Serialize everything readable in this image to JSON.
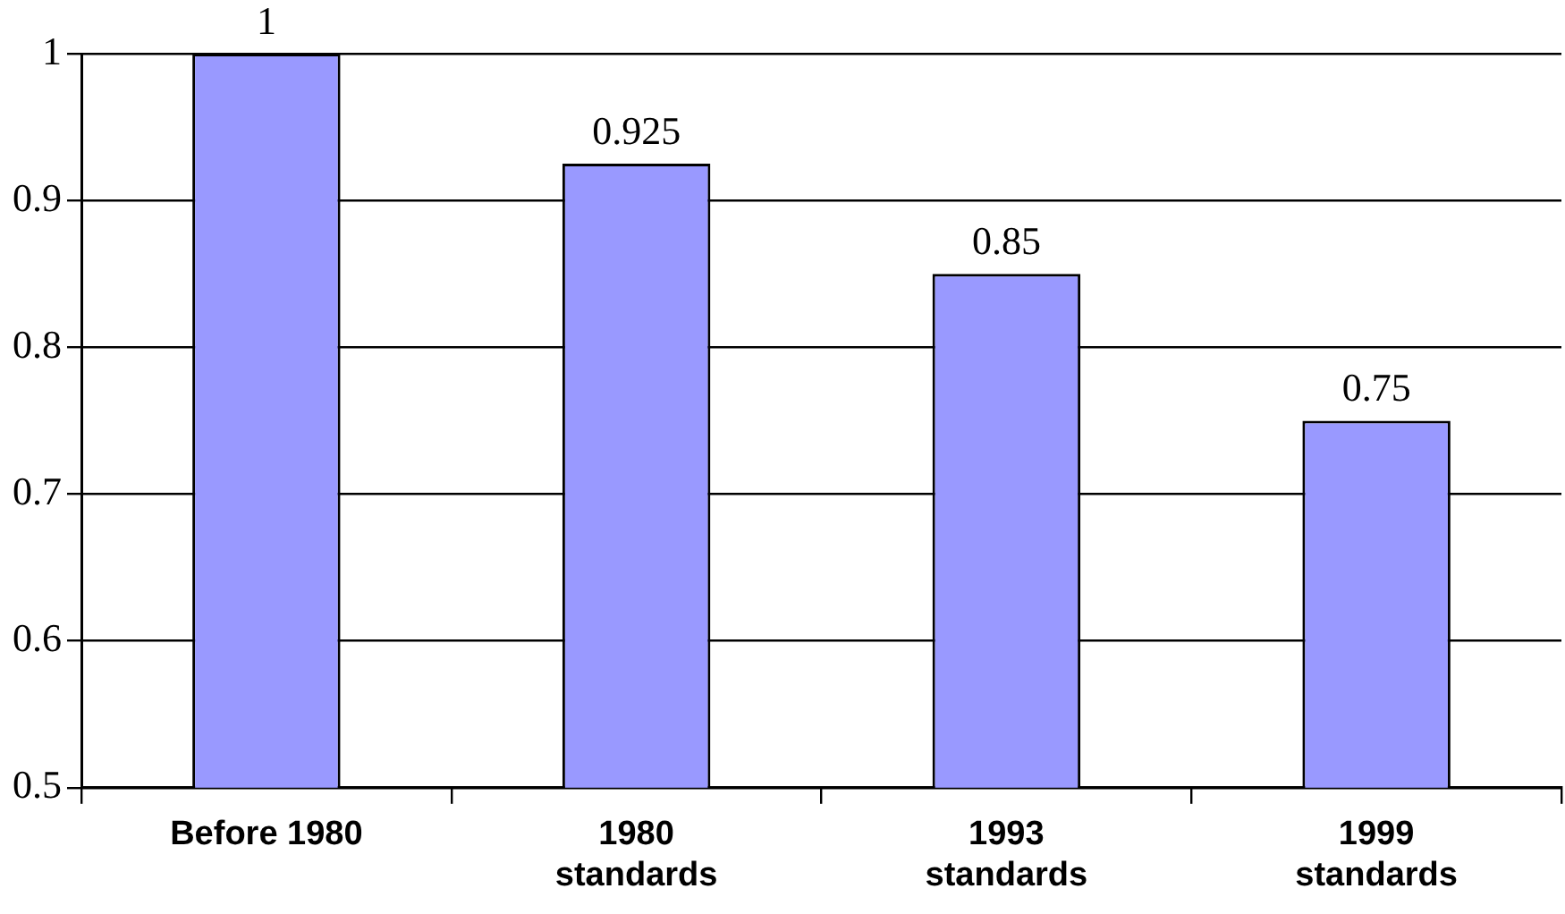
{
  "chart_data": {
    "type": "bar",
    "categories": [
      "Before 1980",
      "1980 standards",
      "1993 standards",
      "1999 standards"
    ],
    "values": [
      1,
      0.925,
      0.85,
      0.75
    ],
    "color": "#9999ff",
    "ylim": [
      0.5,
      1
    ],
    "yticks": [
      0.5,
      0.6,
      0.7,
      0.8,
      0.9,
      1
    ],
    "grid": "y",
    "data_labels": true,
    "legend": false
  }
}
